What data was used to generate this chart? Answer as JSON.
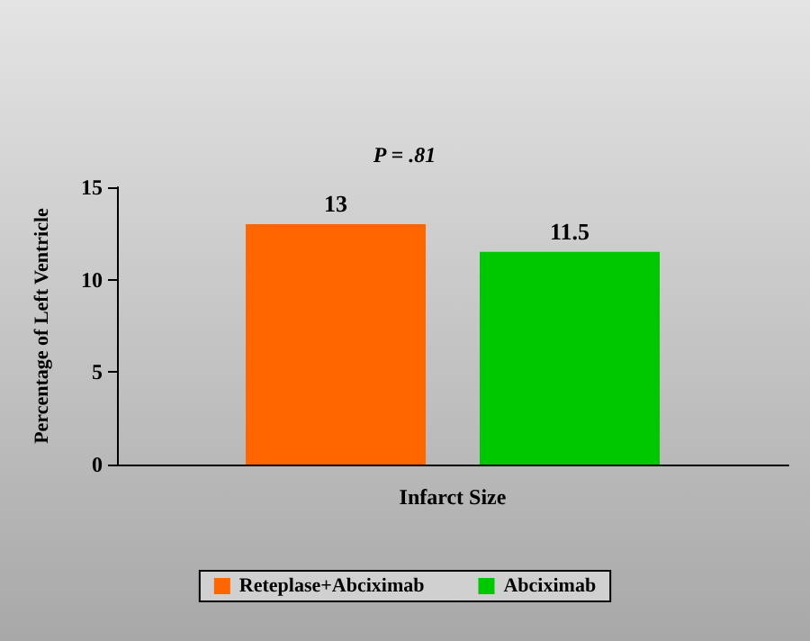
{
  "chart_data": {
    "type": "bar",
    "categories": [
      "Infarct Size"
    ],
    "series": [
      {
        "name": "Reteplase+Abciximab",
        "color": "#ff6600",
        "values": [
          13
        ]
      },
      {
        "name": "Abciximab",
        "color": "#00c800",
        "values": [
          11.5
        ]
      }
    ],
    "ylabel": "Percentage of Left Ventricle",
    "ylim": [
      0,
      15
    ],
    "yticks": [
      0,
      5,
      10,
      15
    ],
    "annotations": [
      "P = .81"
    ],
    "data_labels": true,
    "legend": "bottom",
    "grid": false
  }
}
